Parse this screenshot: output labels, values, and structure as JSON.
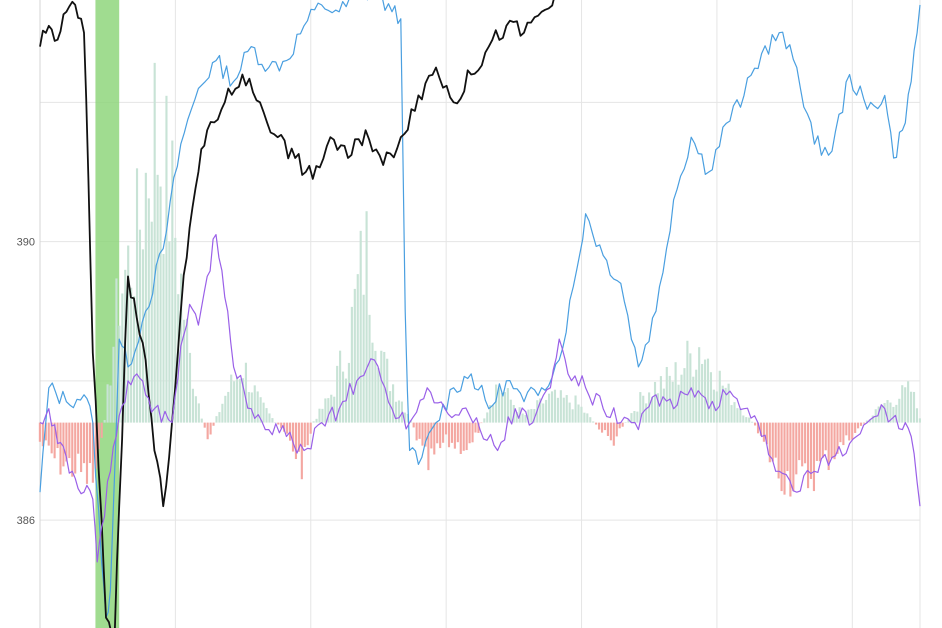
{
  "chart_data": {
    "type": "line",
    "title": "",
    "xlabel": "",
    "ylabel": "",
    "y_tick_labels": [
      "390",
      "386"
    ],
    "y_ticks": [
      390,
      386
    ],
    "ylim": [
      384.45,
      393.47
    ],
    "grid": true,
    "legend": "none",
    "highlight_band": {
      "from": 0.063,
      "to": 0.09,
      "color": "#8fd67c"
    },
    "baseline": 387.4,
    "histogram": {
      "positive_color": "#c8e3d6",
      "negative_color": "#f4a7a1",
      "anchors": [
        [
          0.0,
          387.1
        ],
        [
          0.02,
          386.8
        ],
        [
          0.04,
          386.7
        ],
        [
          0.06,
          386.5
        ],
        [
          0.07,
          387.0
        ],
        [
          0.08,
          388.2
        ],
        [
          0.09,
          389.4
        ],
        [
          0.11,
          390.2
        ],
        [
          0.13,
          392.0
        ],
        [
          0.15,
          390.8
        ],
        [
          0.17,
          388.4
        ],
        [
          0.19,
          387.1
        ],
        [
          0.21,
          387.8
        ],
        [
          0.23,
          388.3
        ],
        [
          0.25,
          387.7
        ],
        [
          0.28,
          387.2
        ],
        [
          0.3,
          386.7
        ],
        [
          0.31,
          387.4
        ],
        [
          0.33,
          387.8
        ],
        [
          0.35,
          388.6
        ],
        [
          0.37,
          390.1
        ],
        [
          0.39,
          388.3
        ],
        [
          0.42,
          387.5
        ],
        [
          0.44,
          386.7
        ],
        [
          0.46,
          387.1
        ],
        [
          0.49,
          387.0
        ],
        [
          0.52,
          388.0
        ],
        [
          0.55,
          387.5
        ],
        [
          0.58,
          387.8
        ],
        [
          0.61,
          387.7
        ],
        [
          0.65,
          387.1
        ],
        [
          0.69,
          387.9
        ],
        [
          0.72,
          388.1
        ],
        [
          0.75,
          388.6
        ],
        [
          0.78,
          387.9
        ],
        [
          0.81,
          387.4
        ],
        [
          0.84,
          386.6
        ],
        [
          0.87,
          386.5
        ],
        [
          0.9,
          386.9
        ],
        [
          0.93,
          387.3
        ],
        [
          0.96,
          387.7
        ],
        [
          0.99,
          387.9
        ],
        [
          1.0,
          387.5
        ]
      ]
    },
    "series": [
      {
        "color": "#4a9fe0",
        "points": [
          [
            0.0,
            386.4
          ],
          [
            0.01,
            387.9
          ],
          [
            0.03,
            387.7
          ],
          [
            0.05,
            387.8
          ],
          [
            0.06,
            387.4
          ],
          [
            0.07,
            385.4
          ],
          [
            0.075,
            384.6
          ],
          [
            0.08,
            385.0
          ],
          [
            0.09,
            388.6
          ],
          [
            0.1,
            388.2
          ],
          [
            0.12,
            389.0
          ],
          [
            0.14,
            389.9
          ],
          [
            0.16,
            391.4
          ],
          [
            0.18,
            392.2
          ],
          [
            0.2,
            392.6
          ],
          [
            0.22,
            392.3
          ],
          [
            0.24,
            392.8
          ],
          [
            0.26,
            392.5
          ],
          [
            0.28,
            392.6
          ],
          [
            0.3,
            393.1
          ],
          [
            0.32,
            393.4
          ],
          [
            0.34,
            393.3
          ],
          [
            0.36,
            393.5
          ],
          [
            0.38,
            393.6
          ],
          [
            0.4,
            393.3
          ],
          [
            0.41,
            393.2
          ],
          [
            0.415,
            389.0
          ],
          [
            0.42,
            387.0
          ],
          [
            0.43,
            386.8
          ],
          [
            0.45,
            387.4
          ],
          [
            0.47,
            387.9
          ],
          [
            0.49,
            388.1
          ],
          [
            0.51,
            387.6
          ],
          [
            0.53,
            388.0
          ],
          [
            0.55,
            387.7
          ],
          [
            0.57,
            387.9
          ],
          [
            0.59,
            388.3
          ],
          [
            0.61,
            389.6
          ],
          [
            0.62,
            390.4
          ],
          [
            0.64,
            389.8
          ],
          [
            0.66,
            389.4
          ],
          [
            0.68,
            388.2
          ],
          [
            0.7,
            389.0
          ],
          [
            0.72,
            390.6
          ],
          [
            0.74,
            391.5
          ],
          [
            0.76,
            391.0
          ],
          [
            0.78,
            391.7
          ],
          [
            0.8,
            392.1
          ],
          [
            0.82,
            392.7
          ],
          [
            0.84,
            393.0
          ],
          [
            0.86,
            392.5
          ],
          [
            0.88,
            391.4
          ],
          [
            0.9,
            391.3
          ],
          [
            0.92,
            392.4
          ],
          [
            0.94,
            391.9
          ],
          [
            0.96,
            392.1
          ],
          [
            0.97,
            391.2
          ],
          [
            0.98,
            391.6
          ],
          [
            0.99,
            392.3
          ],
          [
            1.0,
            393.4
          ]
        ]
      },
      {
        "color": "#111111",
        "points": [
          [
            0.0,
            392.8
          ],
          [
            0.01,
            393.1
          ],
          [
            0.02,
            392.9
          ],
          [
            0.03,
            393.3
          ],
          [
            0.04,
            393.4
          ],
          [
            0.05,
            393.0
          ],
          [
            0.055,
            390.9
          ],
          [
            0.06,
            388.4
          ],
          [
            0.07,
            386.0
          ],
          [
            0.075,
            384.6
          ],
          [
            0.085,
            384.4
          ],
          [
            0.09,
            386.2
          ],
          [
            0.1,
            389.5
          ],
          [
            0.11,
            388.9
          ],
          [
            0.12,
            388.3
          ],
          [
            0.13,
            387.0
          ],
          [
            0.14,
            386.2
          ],
          [
            0.15,
            387.4
          ],
          [
            0.16,
            389.0
          ],
          [
            0.17,
            390.2
          ],
          [
            0.18,
            391.0
          ],
          [
            0.19,
            391.6
          ],
          [
            0.21,
            392.0
          ],
          [
            0.23,
            392.4
          ],
          [
            0.25,
            392.0
          ],
          [
            0.27,
            391.5
          ],
          [
            0.29,
            391.2
          ],
          [
            0.31,
            390.9
          ],
          [
            0.33,
            391.5
          ],
          [
            0.35,
            391.2
          ],
          [
            0.37,
            391.6
          ],
          [
            0.39,
            391.1
          ],
          [
            0.41,
            391.5
          ],
          [
            0.43,
            392.1
          ],
          [
            0.45,
            392.5
          ],
          [
            0.47,
            392.0
          ],
          [
            0.49,
            392.4
          ],
          [
            0.51,
            392.8
          ],
          [
            0.53,
            393.1
          ],
          [
            0.55,
            393.0
          ],
          [
            0.57,
            393.3
          ],
          [
            0.59,
            393.5
          ]
        ]
      },
      {
        "color": "#9a60e8",
        "points": [
          [
            0.0,
            387.4
          ],
          [
            0.01,
            387.6
          ],
          [
            0.02,
            387.1
          ],
          [
            0.03,
            386.9
          ],
          [
            0.04,
            386.6
          ],
          [
            0.05,
            386.4
          ],
          [
            0.06,
            386.3
          ],
          [
            0.065,
            385.4
          ],
          [
            0.07,
            385.9
          ],
          [
            0.08,
            386.7
          ],
          [
            0.09,
            387.5
          ],
          [
            0.1,
            388.0
          ],
          [
            0.11,
            388.1
          ],
          [
            0.12,
            387.8
          ],
          [
            0.13,
            387.6
          ],
          [
            0.15,
            387.4
          ],
          [
            0.16,
            388.5
          ],
          [
            0.17,
            389.1
          ],
          [
            0.18,
            388.8
          ],
          [
            0.19,
            389.5
          ],
          [
            0.2,
            390.1
          ],
          [
            0.21,
            389.2
          ],
          [
            0.22,
            388.2
          ],
          [
            0.24,
            387.6
          ],
          [
            0.26,
            387.3
          ],
          [
            0.28,
            387.2
          ],
          [
            0.3,
            387.0
          ],
          [
            0.32,
            387.4
          ],
          [
            0.34,
            387.6
          ],
          [
            0.36,
            388.0
          ],
          [
            0.38,
            388.3
          ],
          [
            0.4,
            387.6
          ],
          [
            0.42,
            387.4
          ],
          [
            0.44,
            387.9
          ],
          [
            0.46,
            387.6
          ],
          [
            0.48,
            387.6
          ],
          [
            0.5,
            387.3
          ],
          [
            0.52,
            387.0
          ],
          [
            0.54,
            387.6
          ],
          [
            0.56,
            387.4
          ],
          [
            0.58,
            387.9
          ],
          [
            0.59,
            388.6
          ],
          [
            0.6,
            388.1
          ],
          [
            0.62,
            387.9
          ],
          [
            0.64,
            387.6
          ],
          [
            0.66,
            387.4
          ],
          [
            0.68,
            387.3
          ],
          [
            0.7,
            387.8
          ],
          [
            0.72,
            387.6
          ],
          [
            0.74,
            387.9
          ],
          [
            0.76,
            387.6
          ],
          [
            0.78,
            387.8
          ],
          [
            0.8,
            387.6
          ],
          [
            0.82,
            387.2
          ],
          [
            0.84,
            386.7
          ],
          [
            0.86,
            386.4
          ],
          [
            0.88,
            386.7
          ],
          [
            0.9,
            386.9
          ],
          [
            0.92,
            387.1
          ],
          [
            0.94,
            387.4
          ],
          [
            0.96,
            387.6
          ],
          [
            0.98,
            387.3
          ],
          [
            0.99,
            387.2
          ],
          [
            1.0,
            386.2
          ]
        ]
      }
    ]
  }
}
